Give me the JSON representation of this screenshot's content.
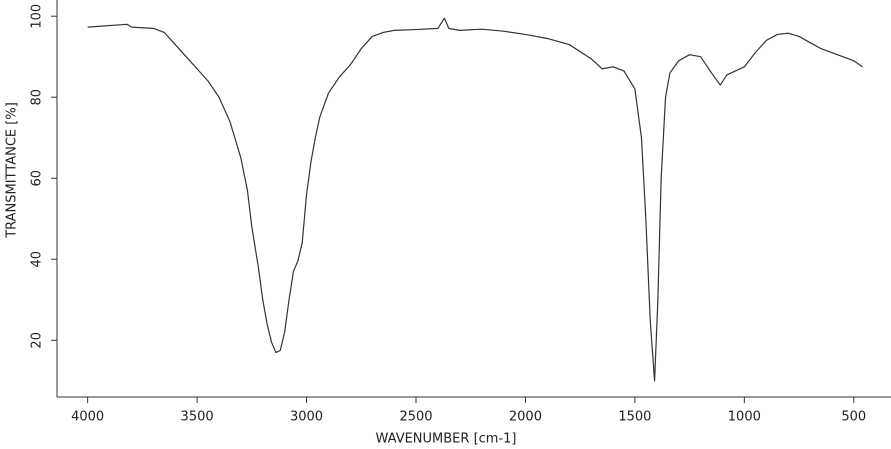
{
  "chart_data": {
    "type": "line",
    "xlabel": "WAVENUMBER [cm-1]",
    "ylabel": "TRANSMITTANCE [%]",
    "x": [
      4000,
      3820,
      3800,
      3700,
      3650,
      3600,
      3550,
      3500,
      3450,
      3400,
      3350,
      3300,
      3270,
      3250,
      3220,
      3200,
      3180,
      3160,
      3140,
      3120,
      3100,
      3080,
      3060,
      3040,
      3020,
      3000,
      2980,
      2960,
      2940,
      2900,
      2850,
      2800,
      2750,
      2700,
      2650,
      2600,
      2500,
      2400,
      2370,
      2350,
      2300,
      2200,
      2100,
      2000,
      1900,
      1800,
      1700,
      1650,
      1600,
      1550,
      1500,
      1470,
      1450,
      1430,
      1410,
      1395,
      1380,
      1360,
      1340,
      1300,
      1250,
      1200,
      1150,
      1110,
      1080,
      1000,
      950,
      900,
      850,
      800,
      750,
      700,
      650,
      600,
      550,
      500,
      460
    ],
    "values": [
      97.3,
      98,
      97.3,
      97,
      96,
      93,
      90,
      87,
      84,
      80,
      74,
      65,
      57,
      48,
      38,
      30,
      24,
      19.5,
      17,
      17.5,
      22,
      30,
      37,
      39.5,
      44,
      56,
      64,
      70,
      75,
      81,
      85,
      88,
      92,
      95,
      96,
      96.5,
      96.7,
      97,
      99.5,
      97,
      96.5,
      96.8,
      96.3,
      95.5,
      94.5,
      93,
      89.5,
      87,
      87.5,
      86.5,
      82,
      70,
      50,
      25,
      10,
      30,
      60,
      80,
      86,
      89,
      90.5,
      90,
      86,
      83,
      85.5,
      87.5,
      91,
      94,
      95.5,
      95.8,
      95,
      93.5,
      92,
      91,
      90,
      89,
      87.5
    ],
    "color": "#333333",
    "xlim": [
      4140,
      330
    ],
    "ylim": [
      6,
      104
    ],
    "xticks": [
      4000,
      3500,
      3000,
      2500,
      2000,
      1500,
      1000,
      500
    ],
    "yticks": [
      20,
      40,
      60,
      80,
      100
    ]
  }
}
